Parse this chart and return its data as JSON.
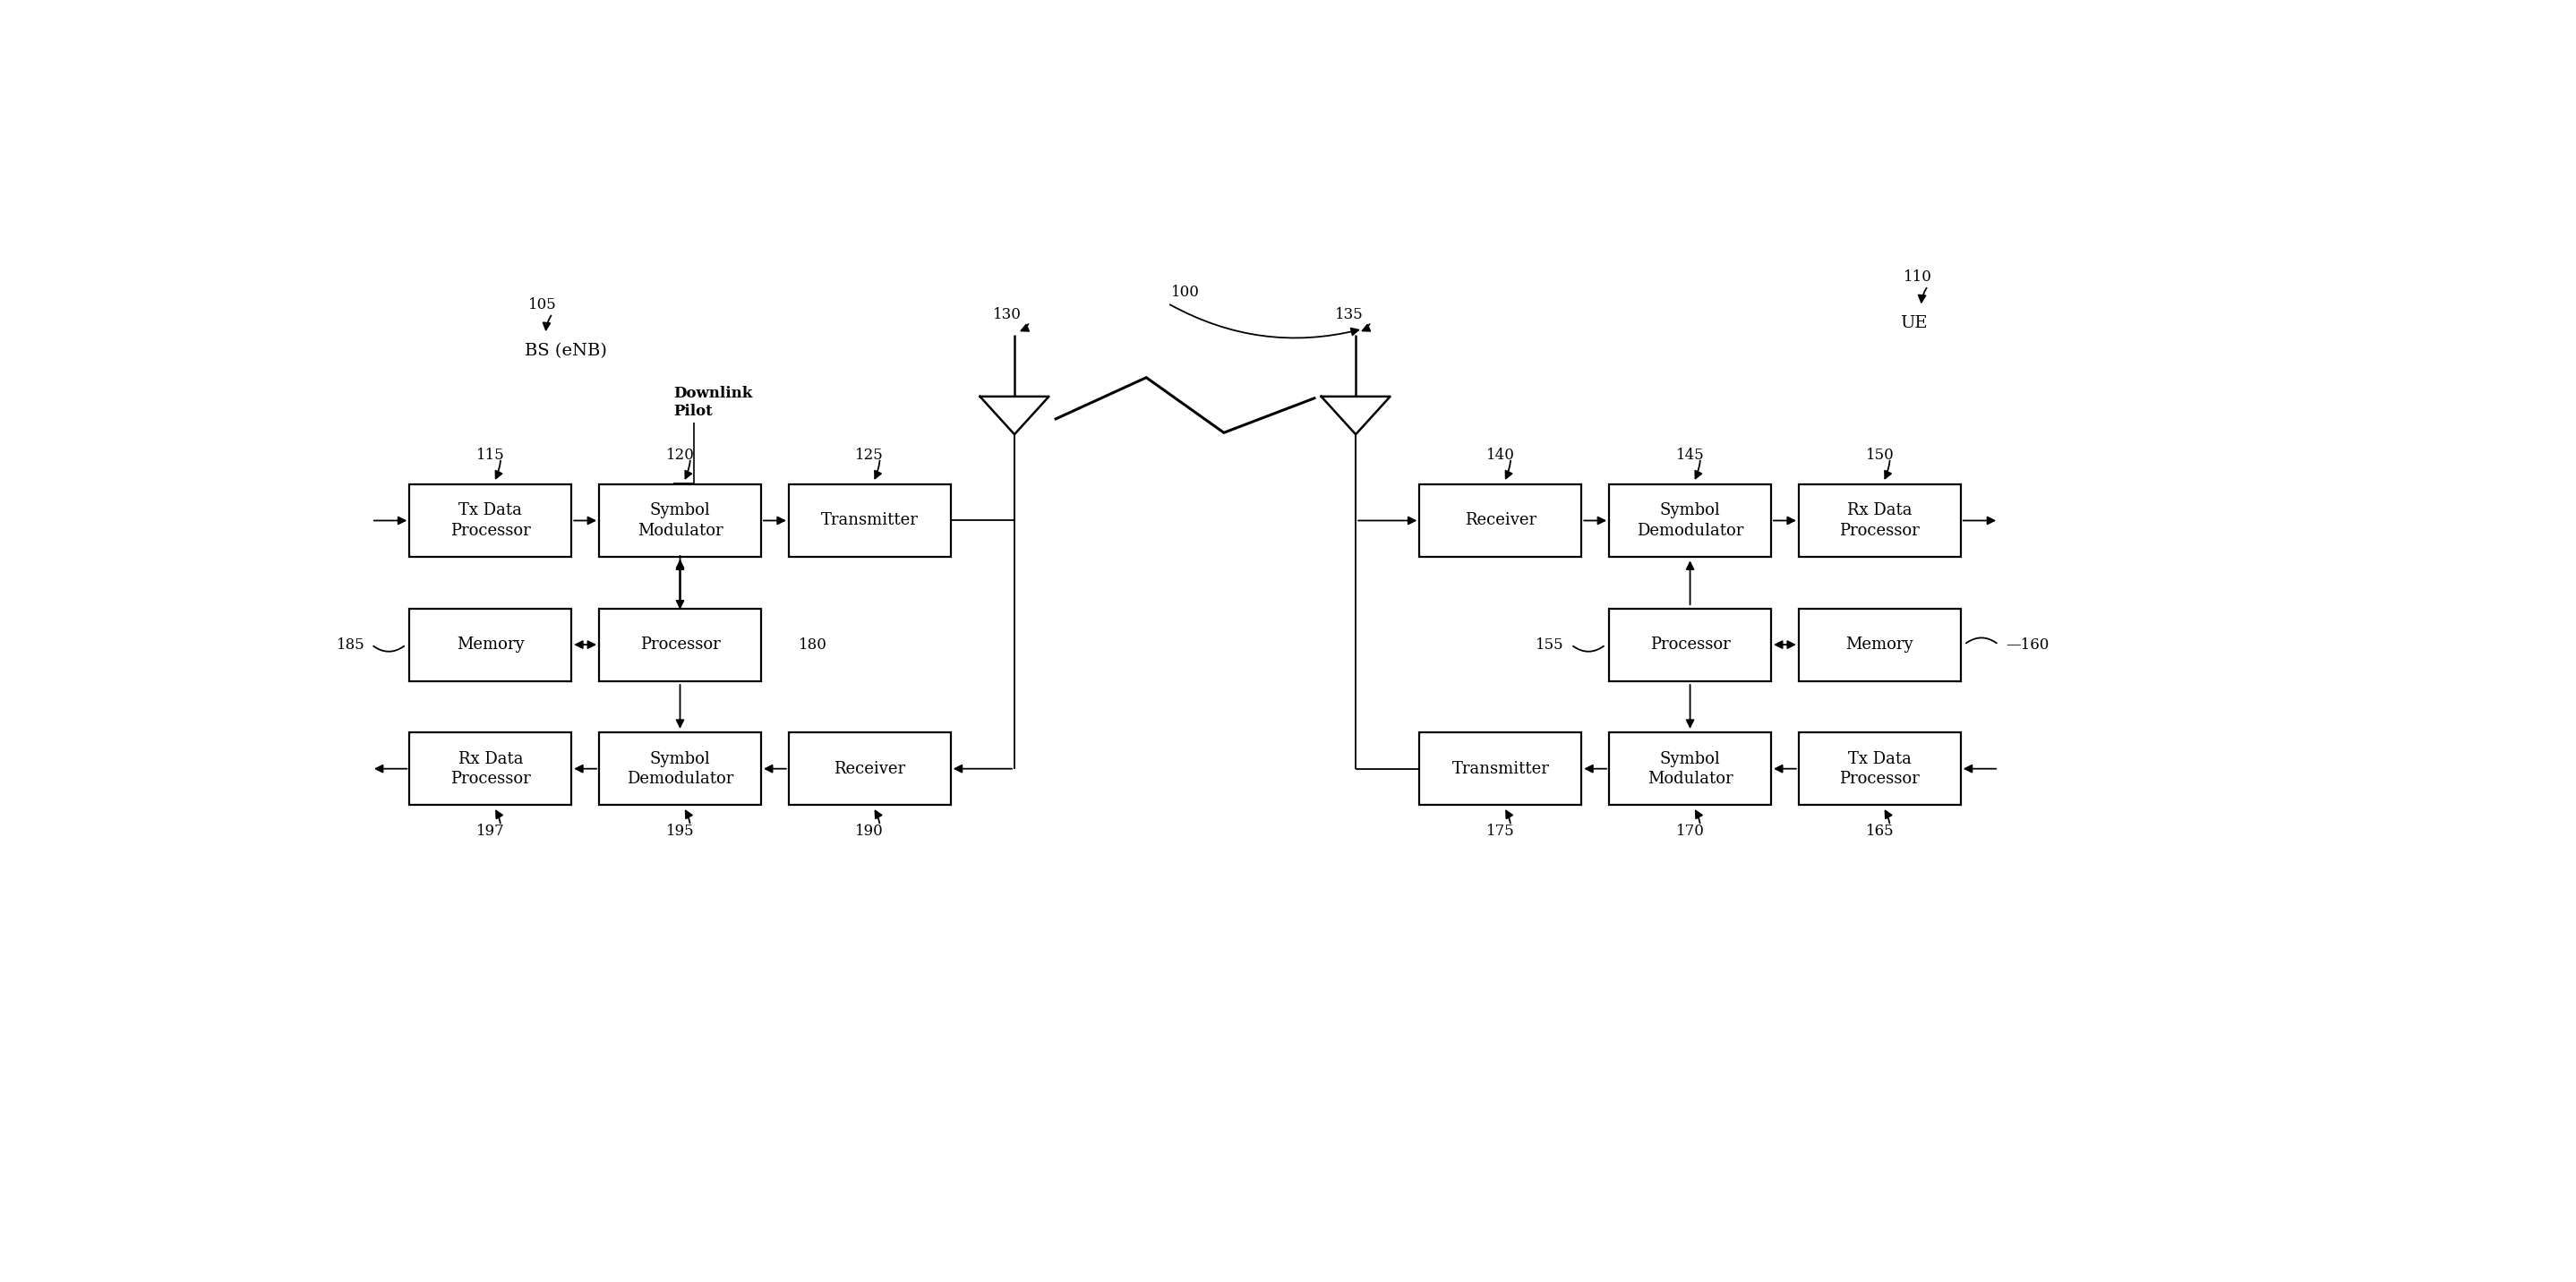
{
  "bg_color": "#ffffff",
  "fig_width": 28.77,
  "fig_height": 14.32,
  "bs_label": "BS (eNB)",
  "bs_ref": "105",
  "ue_label": "UE",
  "ue_ref": "110",
  "system_ref": "100",
  "bs_blocks": [
    {
      "id": "tx_data",
      "label": "Tx Data\nProcessor",
      "ref": "115",
      "col": 0,
      "row": 0
    },
    {
      "id": "sym_mod",
      "label": "Symbol\nModulator",
      "ref": "120",
      "col": 1,
      "row": 0
    },
    {
      "id": "transmitter",
      "label": "Transmitter",
      "ref": "125",
      "col": 2,
      "row": 0
    },
    {
      "id": "memory_bs",
      "label": "Memory",
      "ref": "185",
      "col": 0,
      "row": 1
    },
    {
      "id": "processor_bs",
      "label": "Processor",
      "ref": "180",
      "col": 1,
      "row": 1
    },
    {
      "id": "rx_data_bs",
      "label": "Rx Data\nProcessor",
      "ref": "197",
      "col": 0,
      "row": 2
    },
    {
      "id": "sym_demod_bs",
      "label": "Symbol\nDemodulator",
      "ref": "195",
      "col": 1,
      "row": 2
    },
    {
      "id": "receiver_bs",
      "label": "Receiver",
      "ref": "190",
      "col": 2,
      "row": 2
    }
  ],
  "ue_blocks": [
    {
      "id": "receiver_ue",
      "label": "Receiver",
      "ref": "140",
      "col": 0,
      "row": 0
    },
    {
      "id": "sym_demod_ue",
      "label": "Symbol\nDemodulator",
      "ref": "145",
      "col": 1,
      "row": 0
    },
    {
      "id": "rx_data_ue",
      "label": "Rx Data\nProcessor",
      "ref": "150",
      "col": 2,
      "row": 0
    },
    {
      "id": "processor_ue",
      "label": "Processor",
      "ref": "155",
      "col": 1,
      "row": 1
    },
    {
      "id": "memory_ue",
      "label": "Memory",
      "ref": "160",
      "col": 2,
      "row": 1
    },
    {
      "id": "transmitter_ue",
      "label": "Transmitter",
      "ref": "175",
      "col": 0,
      "row": 2
    },
    {
      "id": "sym_mod_ue",
      "label": "Symbol\nModulator",
      "ref": "170",
      "col": 1,
      "row": 2
    },
    {
      "id": "tx_data_ue",
      "label": "Tx Data\nProcessor",
      "ref": "165",
      "col": 2,
      "row": 2
    }
  ],
  "box_color": "#ffffff",
  "box_edge_color": "#000000",
  "text_color": "#000000",
  "line_color": "#000000"
}
